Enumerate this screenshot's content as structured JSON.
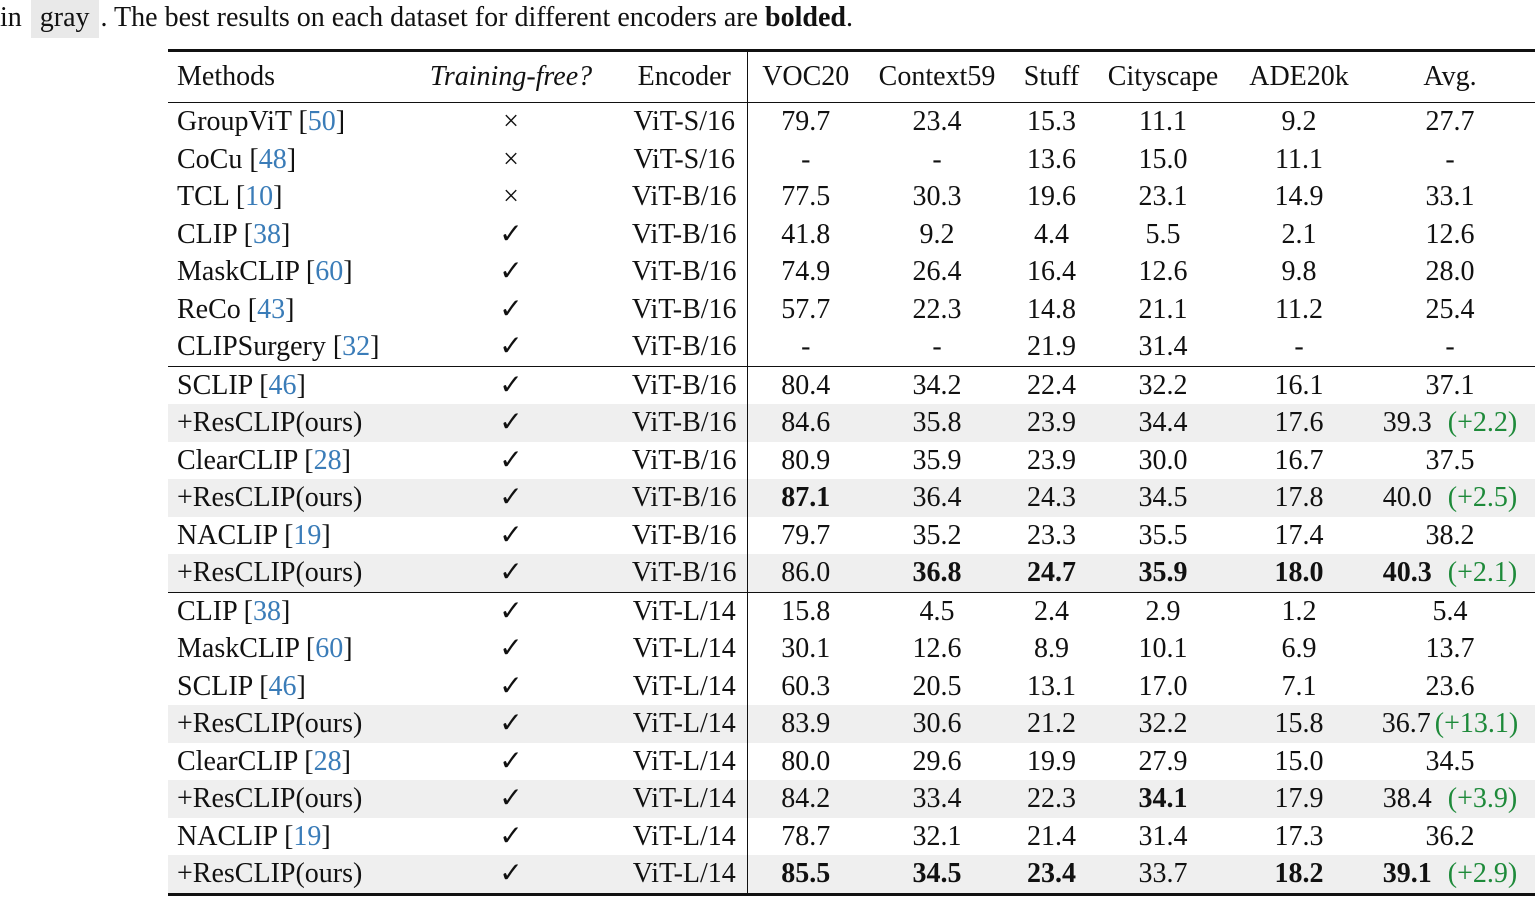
{
  "caption": {
    "prefix": "in",
    "gray_word": "gray",
    "middle": ". The best results on each dataset for different encoders are",
    "bold_word": "bolded",
    "suffix": "."
  },
  "header": {
    "methods": "Methods",
    "training_free": "Training-free?",
    "encoder": "Encoder",
    "voc20": "VOC20",
    "context59": "Context59",
    "stuff": "Stuff",
    "cityscape": "Cityscape",
    "ade20k": "ADE20k",
    "avg": "Avg."
  },
  "rows": [
    {
      "name": "GroupViT",
      "ref": "50",
      "tf": "×",
      "enc": "ViT-S/16",
      "v": [
        "79.7",
        "23.4",
        "15.3",
        "11.1",
        "9.2"
      ],
      "avg": "27.7",
      "gain": "",
      "bold": []
    },
    {
      "name": "CoCu",
      "ref": "48",
      "tf": "×",
      "enc": "ViT-S/16",
      "v": [
        "-",
        "-",
        "13.6",
        "15.0",
        "11.1"
      ],
      "avg": "-",
      "gain": "",
      "bold": []
    },
    {
      "name": "TCL",
      "ref": "10",
      "tf": "×",
      "enc": "ViT-B/16",
      "v": [
        "77.5",
        "30.3",
        "19.6",
        "23.1",
        "14.9"
      ],
      "avg": "33.1",
      "gain": "",
      "bold": []
    },
    {
      "name": "CLIP",
      "ref": "38",
      "tf": "✓",
      "enc": "ViT-B/16",
      "v": [
        "41.8",
        "9.2",
        "4.4",
        "5.5",
        "2.1"
      ],
      "avg": "12.6",
      "gain": "",
      "bold": []
    },
    {
      "name": "MaskCLIP",
      "ref": "60",
      "tf": "✓",
      "enc": "ViT-B/16",
      "v": [
        "74.9",
        "26.4",
        "16.4",
        "12.6",
        "9.8"
      ],
      "avg": "28.0",
      "gain": "",
      "bold": []
    },
    {
      "name": "ReCo",
      "ref": "43",
      "tf": "✓",
      "enc": "ViT-B/16",
      "v": [
        "57.7",
        "22.3",
        "14.8",
        "21.1",
        "11.2"
      ],
      "avg": "25.4",
      "gain": "",
      "bold": []
    },
    {
      "name": "CLIPSurgery",
      "ref": "32",
      "tf": "✓",
      "enc": "ViT-B/16",
      "v": [
        "-",
        "-",
        "21.9",
        "31.4",
        "-"
      ],
      "avg": "-",
      "gain": "",
      "bold": []
    },
    {
      "name": "SCLIP",
      "ref": "46",
      "tf": "✓",
      "enc": "ViT-B/16",
      "v": [
        "80.4",
        "34.2",
        "22.4",
        "32.2",
        "16.1"
      ],
      "avg": "37.1",
      "gain": "",
      "bold": []
    },
    {
      "name": "+ResCLIP(ours)",
      "ref": "",
      "tf": "✓",
      "enc": "ViT-B/16",
      "v": [
        "84.6",
        "35.8",
        "23.9",
        "34.4",
        "17.6"
      ],
      "avg": "39.3",
      "gain": "(+2.2)",
      "bold": []
    },
    {
      "name": "ClearCLIP",
      "ref": "28",
      "tf": "✓",
      "enc": "ViT-B/16",
      "v": [
        "80.9",
        "35.9",
        "23.9",
        "30.0",
        "16.7"
      ],
      "avg": "37.5",
      "gain": "",
      "bold": []
    },
    {
      "name": "+ResCLIP(ours)",
      "ref": "",
      "tf": "✓",
      "enc": "ViT-B/16",
      "v": [
        "87.1",
        "36.4",
        "24.3",
        "34.5",
        "17.8"
      ],
      "avg": "40.0",
      "gain": "(+2.5)",
      "bold": [
        0
      ]
    },
    {
      "name": "NACLIP",
      "ref": "19",
      "tf": "✓",
      "enc": "ViT-B/16",
      "v": [
        "79.7",
        "35.2",
        "23.3",
        "35.5",
        "17.4"
      ],
      "avg": "38.2",
      "gain": "",
      "bold": []
    },
    {
      "name": "+ResCLIP(ours)",
      "ref": "",
      "tf": "✓",
      "enc": "ViT-B/16",
      "v": [
        "86.0",
        "36.8",
        "24.7",
        "35.9",
        "18.0"
      ],
      "avg": "40.3",
      "gain": "(+2.1)",
      "bold": [
        1,
        2,
        3,
        4,
        5
      ]
    },
    {
      "name": "CLIP",
      "ref": "38",
      "tf": "✓",
      "enc": "ViT-L/14",
      "v": [
        "15.8",
        "4.5",
        "2.4",
        "2.9",
        "1.2"
      ],
      "avg": "5.4",
      "gain": "",
      "bold": []
    },
    {
      "name": "MaskCLIP",
      "ref": "60",
      "tf": "✓",
      "enc": "ViT-L/14",
      "v": [
        "30.1",
        "12.6",
        "8.9",
        "10.1",
        "6.9"
      ],
      "avg": "13.7",
      "gain": "",
      "bold": []
    },
    {
      "name": "SCLIP",
      "ref": "46",
      "tf": "✓",
      "enc": "ViT-L/14",
      "v": [
        "60.3",
        "20.5",
        "13.1",
        "17.0",
        "7.1"
      ],
      "avg": "23.6",
      "gain": "",
      "bold": []
    },
    {
      "name": "+ResCLIP(ours)",
      "ref": "",
      "tf": "✓",
      "enc": "ViT-L/14",
      "v": [
        "83.9",
        "30.6",
        "21.2",
        "32.2",
        "15.8"
      ],
      "avg": "36.7",
      "gain": "(+13.1)",
      "bold": []
    },
    {
      "name": "ClearCLIP",
      "ref": "28",
      "tf": "✓",
      "enc": "ViT-L/14",
      "v": [
        "80.0",
        "29.6",
        "19.9",
        "27.9",
        "15.0"
      ],
      "avg": "34.5",
      "gain": "",
      "bold": []
    },
    {
      "name": "+ResCLIP(ours)",
      "ref": "",
      "tf": "✓",
      "enc": "ViT-L/14",
      "v": [
        "84.2",
        "33.4",
        "22.3",
        "34.1",
        "17.9"
      ],
      "avg": "38.4",
      "gain": "(+3.9)",
      "bold": [
        3
      ]
    },
    {
      "name": "NACLIP",
      "ref": "19",
      "tf": "✓",
      "enc": "ViT-L/14",
      "v": [
        "78.7",
        "32.1",
        "21.4",
        "31.4",
        "17.3"
      ],
      "avg": "36.2",
      "gain": "",
      "bold": []
    },
    {
      "name": "+ResCLIP(ours)",
      "ref": "",
      "tf": "✓",
      "enc": "ViT-L/14",
      "v": [
        "85.5",
        "34.5",
        "23.4",
        "33.7",
        "18.2"
      ],
      "avg": "39.1",
      "gain": "(+2.9)",
      "bold": [
        0,
        1,
        2,
        4,
        5
      ]
    }
  ]
}
